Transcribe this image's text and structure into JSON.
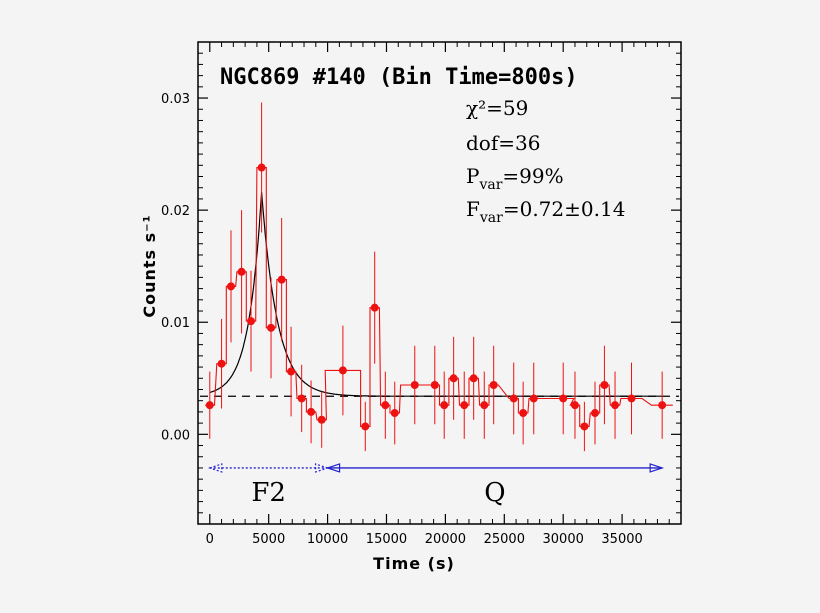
{
  "chart_data": {
    "type": "line",
    "title": "NGC869 #140 (Bin Time=800s)",
    "xlabel": "Time (s)",
    "ylabel": "Counts s⁻¹",
    "xlim": [
      -1000,
      40000
    ],
    "ylim": [
      -0.008,
      0.035
    ],
    "xticks": [
      0,
      5000,
      10000,
      15000,
      20000,
      25000,
      30000,
      35000
    ],
    "xtick_labels": [
      "0",
      "5000",
      "10000",
      "15000",
      "20000",
      "25000",
      "30000",
      "35000"
    ],
    "yticks": [
      0.0,
      0.01,
      0.02,
      0.03
    ],
    "ytick_labels": [
      "0.00",
      "0.01",
      "0.02",
      "0.03"
    ],
    "stats": {
      "chi2": "χ²=59",
      "dof": "dof=36",
      "pvar_label": "P",
      "pvar_sub": "var",
      "pvar_value": "=99%",
      "fvar_label": "F",
      "fvar_sub": "var",
      "fvar_value": "=0.72±0.14"
    },
    "constant_level": 0.0034,
    "series": [
      {
        "kind": "binned-rate",
        "color": "#ee1111",
        "points": [
          {
            "x": 0,
            "y": 0.0026,
            "err": 0.003,
            "half": 400
          },
          {
            "x": 1000,
            "y": 0.0063,
            "err": 0.004,
            "half": 400
          },
          {
            "x": 1800,
            "y": 0.0132,
            "err": 0.005,
            "half": 400
          },
          {
            "x": 2700,
            "y": 0.0145,
            "err": 0.0055,
            "half": 400
          },
          {
            "x": 3500,
            "y": 0.0101,
            "err": 0.0045,
            "half": 400
          },
          {
            "x": 4400,
            "y": 0.0238,
            "err": 0.0058,
            "half": 400
          },
          {
            "x": 5200,
            "y": 0.0095,
            "err": 0.0045,
            "half": 400
          },
          {
            "x": 6100,
            "y": 0.0138,
            "err": 0.0055,
            "half": 400
          },
          {
            "x": 6900,
            "y": 0.0056,
            "err": 0.004,
            "half": 400
          },
          {
            "x": 7800,
            "y": 0.0032,
            "err": 0.003,
            "half": 400
          },
          {
            "x": 8600,
            "y": 0.002,
            "err": 0.0028,
            "half": 400
          },
          {
            "x": 9500,
            "y": 0.0013,
            "err": 0.0025,
            "half": 400
          },
          {
            "x": 11300,
            "y": 0.0057,
            "err": 0.004,
            "half": 1500
          },
          {
            "x": 13200,
            "y": 0.0007,
            "err": 0.0022,
            "half": 400
          },
          {
            "x": 14000,
            "y": 0.0113,
            "err": 0.005,
            "half": 400
          },
          {
            "x": 14900,
            "y": 0.0026,
            "err": 0.003,
            "half": 400
          },
          {
            "x": 15700,
            "y": 0.0019,
            "err": 0.0028,
            "half": 400
          },
          {
            "x": 17400,
            "y": 0.0044,
            "err": 0.0035,
            "half": 1200
          },
          {
            "x": 19100,
            "y": 0.0044,
            "err": 0.0035,
            "half": 400
          },
          {
            "x": 19900,
            "y": 0.0026,
            "err": 0.003,
            "half": 400
          },
          {
            "x": 20700,
            "y": 0.005,
            "err": 0.0037,
            "half": 400
          },
          {
            "x": 21600,
            "y": 0.0026,
            "err": 0.003,
            "half": 400
          },
          {
            "x": 22400,
            "y": 0.005,
            "err": 0.0037,
            "half": 400
          },
          {
            "x": 23300,
            "y": 0.0026,
            "err": 0.003,
            "half": 400
          },
          {
            "x": 24100,
            "y": 0.0044,
            "err": 0.0035,
            "half": 400
          },
          {
            "x": 25800,
            "y": 0.0032,
            "err": 0.0032,
            "half": 400
          },
          {
            "x": 26600,
            "y": 0.0019,
            "err": 0.0028,
            "half": 400
          },
          {
            "x": 27500,
            "y": 0.0032,
            "err": 0.0032,
            "half": 400
          },
          {
            "x": 30000,
            "y": 0.0032,
            "err": 0.0032,
            "half": 900
          },
          {
            "x": 31000,
            "y": 0.0026,
            "err": 0.003,
            "half": 400
          },
          {
            "x": 31800,
            "y": 0.0007,
            "err": 0.0022,
            "half": 400
          },
          {
            "x": 32700,
            "y": 0.0019,
            "err": 0.0028,
            "half": 400
          },
          {
            "x": 33500,
            "y": 0.0044,
            "err": 0.0035,
            "half": 400
          },
          {
            "x": 34400,
            "y": 0.0026,
            "err": 0.003,
            "half": 400
          },
          {
            "x": 35800,
            "y": 0.0032,
            "err": 0.0032,
            "half": 900
          },
          {
            "x": 38400,
            "y": 0.0026,
            "err": 0.003,
            "half": 900
          }
        ]
      },
      {
        "kind": "flare-model",
        "color": "#000000",
        "baseline": 0.0034,
        "peak_time": 4400,
        "peak_amplitude": 0.0182,
        "rise_tau": 1100,
        "decay_tau": 1350,
        "x_start": 0,
        "x_end": 38400
      }
    ],
    "regions": [
      {
        "label": "F2",
        "x_start": 0,
        "x_end": 10000,
        "style": "dotted",
        "color": "#2222cc"
      },
      {
        "label": "Q",
        "x_start": 10000,
        "x_end": 38400,
        "style": "solid",
        "color": "#2222cc"
      }
    ],
    "region_arrow_y": -0.003
  }
}
